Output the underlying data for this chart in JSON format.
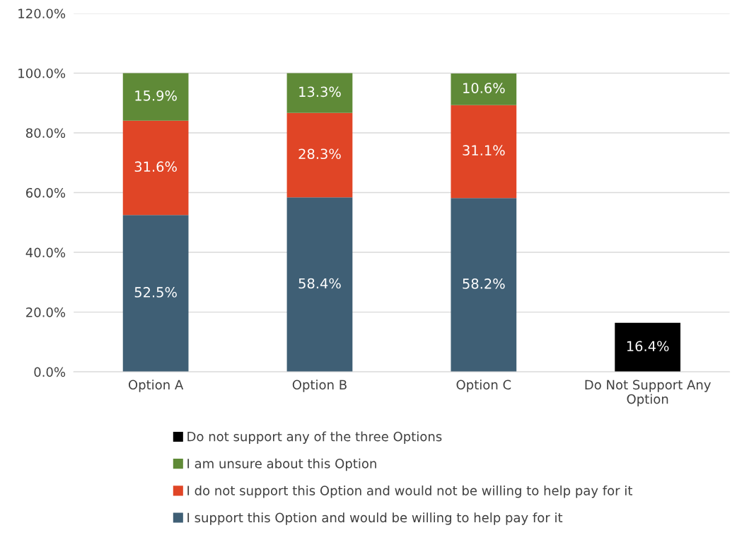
{
  "chart_data": {
    "type": "bar",
    "stacked": true,
    "categories": [
      "Option A",
      "Option B",
      "Option C",
      "Do Not Support Any\nOption"
    ],
    "series": [
      {
        "name": "I support this Option and would be willing to help pay for it",
        "color": "#3f5f75",
        "values": [
          52.5,
          58.4,
          58.2,
          null
        ],
        "value_labels": [
          "52.5%",
          "58.4%",
          "58.2%",
          null
        ]
      },
      {
        "name": "I do not support this Option and would not be willing to help pay for it",
        "color": "#e04526",
        "values": [
          31.6,
          28.3,
          31.1,
          null
        ],
        "value_labels": [
          "31.6%",
          "28.3%",
          "31.1%",
          null
        ]
      },
      {
        "name": "I am unsure about this Option",
        "color": "#5f8a37",
        "values": [
          15.9,
          13.3,
          10.6,
          null
        ],
        "value_labels": [
          "15.9%",
          "13.3%",
          "10.6%",
          null
        ]
      },
      {
        "name": "Do not support any of the three Options",
        "color": "#000000",
        "values": [
          null,
          null,
          null,
          16.4
        ],
        "value_labels": [
          null,
          null,
          null,
          "16.4%"
        ]
      }
    ],
    "ylim": [
      0,
      120
    ],
    "yticks": [
      {
        "value": 0,
        "label": "0.0%"
      },
      {
        "value": 20,
        "label": "20.0%"
      },
      {
        "value": 40,
        "label": "40.0%"
      },
      {
        "value": 60,
        "label": "60.0%"
      },
      {
        "value": 80,
        "label": "80.0%"
      },
      {
        "value": 100,
        "label": "100.0%"
      },
      {
        "value": 120,
        "label": "120.0%"
      }
    ],
    "grid": "y",
    "legend": "bottom"
  }
}
